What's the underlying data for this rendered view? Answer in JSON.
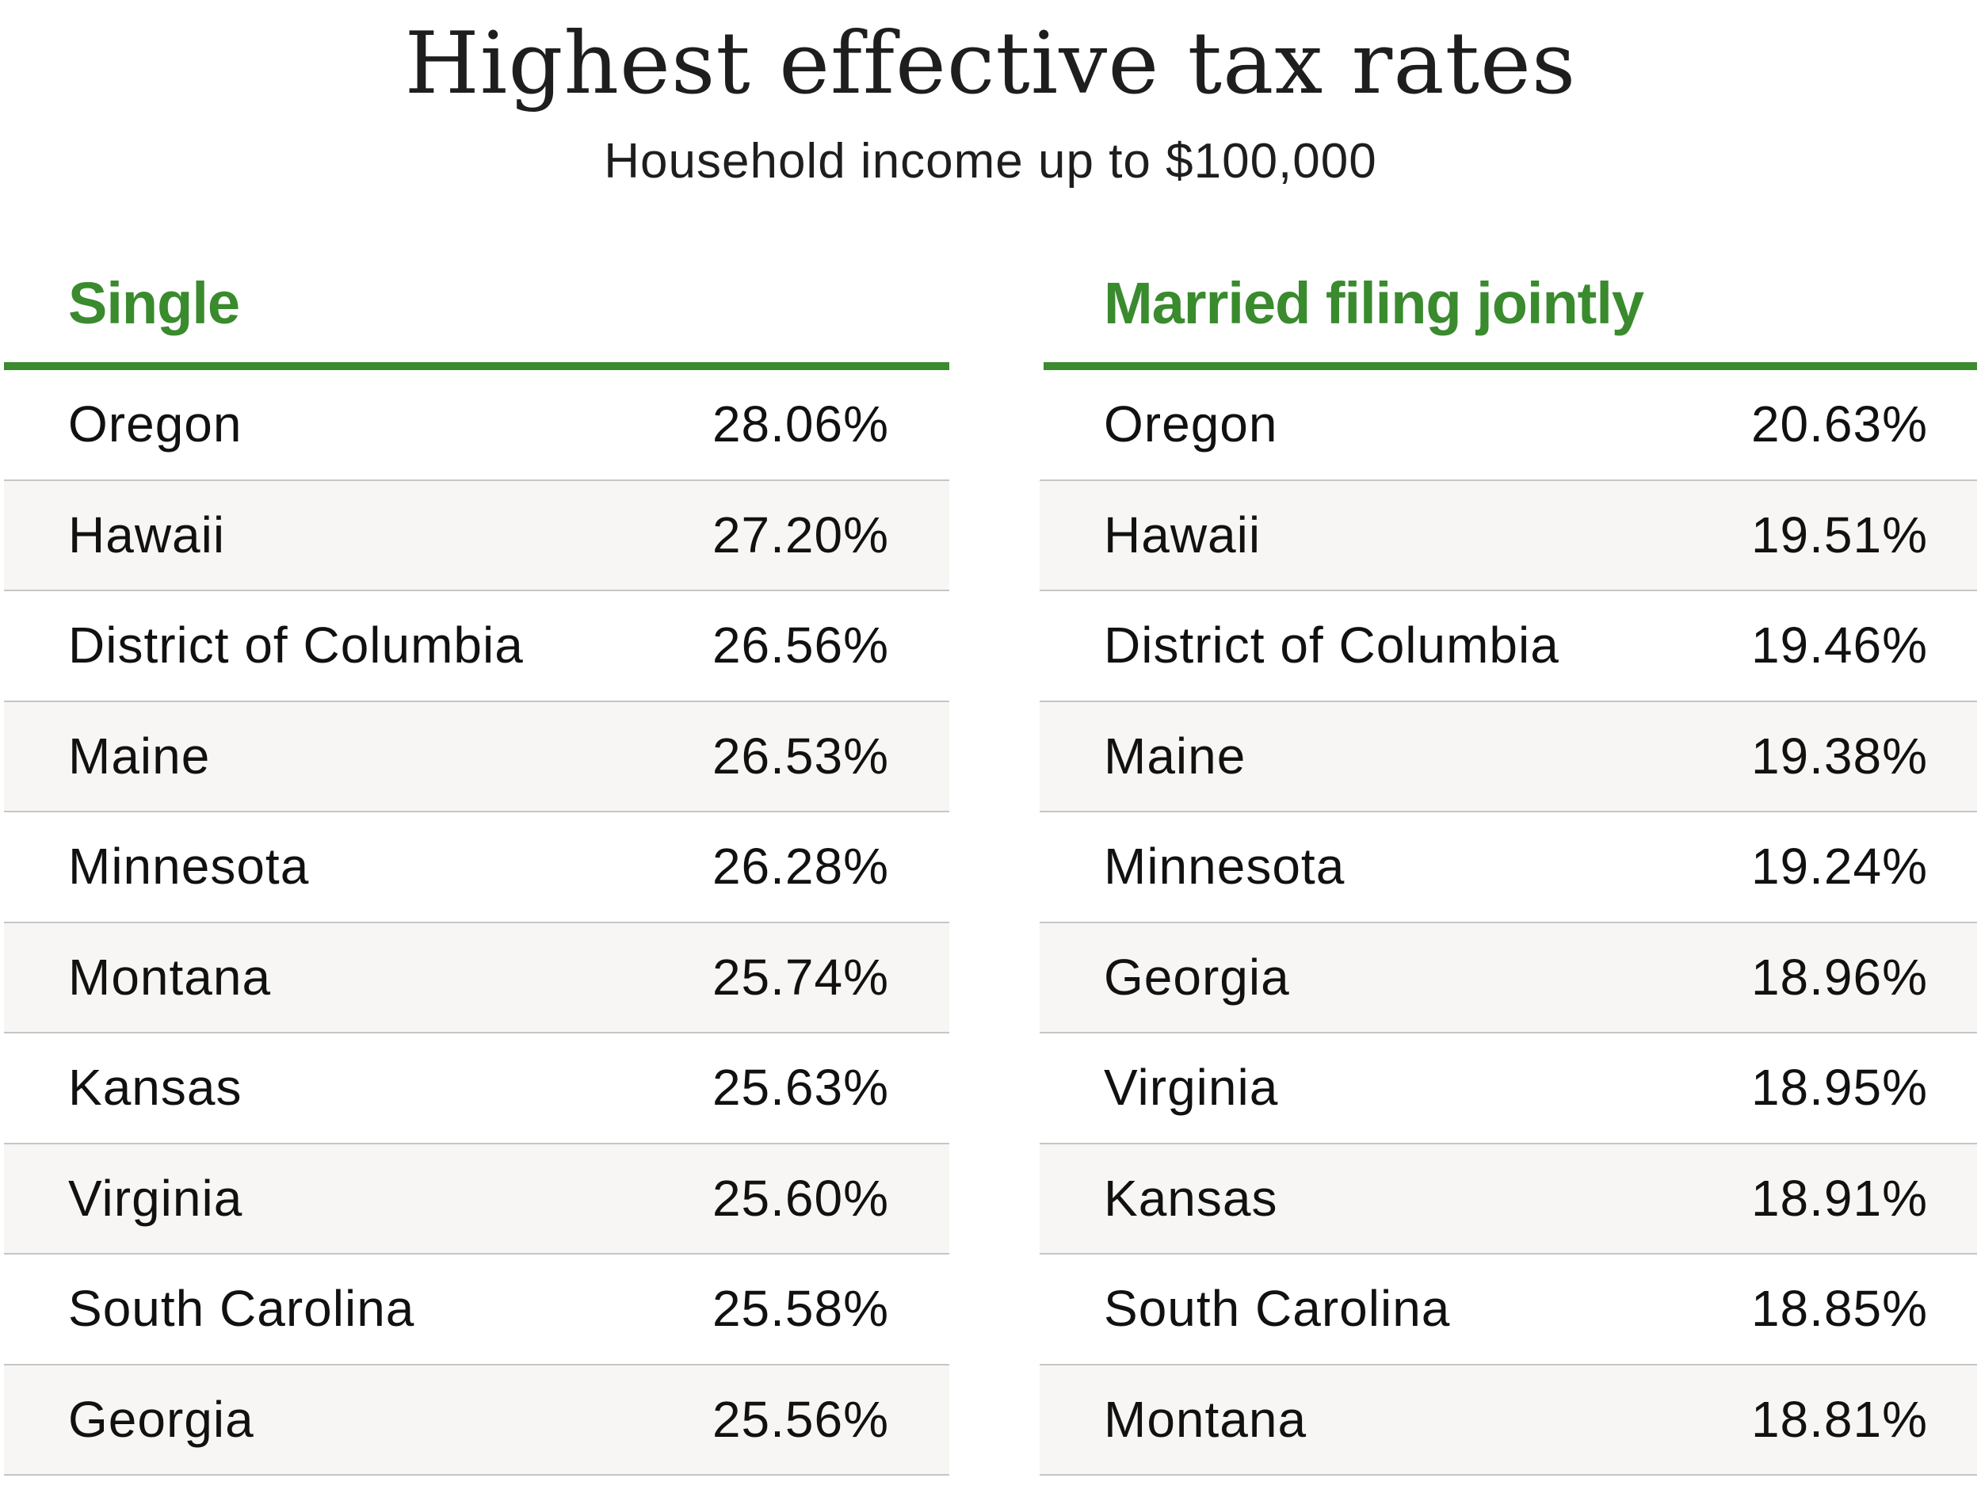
{
  "title": "Highest effective tax rates",
  "subtitle": "Household income up to $100,000",
  "colors": {
    "accent": "#3a8a2e",
    "row_alt": "#f7f6f4",
    "divider": "#c6c6c6"
  },
  "tables": [
    {
      "header": "Single",
      "rows": [
        {
          "state": "Oregon",
          "rate": "28.06%"
        },
        {
          "state": "Hawaii",
          "rate": "27.20%"
        },
        {
          "state": "District of Columbia",
          "rate": "26.56%"
        },
        {
          "state": "Maine",
          "rate": "26.53%"
        },
        {
          "state": "Minnesota",
          "rate": "26.28%"
        },
        {
          "state": "Montana",
          "rate": "25.74%"
        },
        {
          "state": "Kansas",
          "rate": "25.63%"
        },
        {
          "state": "Virginia",
          "rate": "25.60%"
        },
        {
          "state": "South Carolina",
          "rate": "25.58%"
        },
        {
          "state": "Georgia",
          "rate": "25.56%"
        }
      ]
    },
    {
      "header": "Married filing jointly",
      "rows": [
        {
          "state": "Oregon",
          "rate": "20.63%"
        },
        {
          "state": "Hawaii",
          "rate": "19.51%"
        },
        {
          "state": "District of Columbia",
          "rate": "19.46%"
        },
        {
          "state": "Maine",
          "rate": "19.38%"
        },
        {
          "state": "Minnesota",
          "rate": "19.24%"
        },
        {
          "state": "Georgia",
          "rate": "18.96%"
        },
        {
          "state": "Virginia",
          "rate": "18.95%"
        },
        {
          "state": "Kansas",
          "rate": "18.91%"
        },
        {
          "state": "South Carolina",
          "rate": "18.85%"
        },
        {
          "state": "Montana",
          "rate": "18.81%"
        }
      ]
    }
  ]
}
